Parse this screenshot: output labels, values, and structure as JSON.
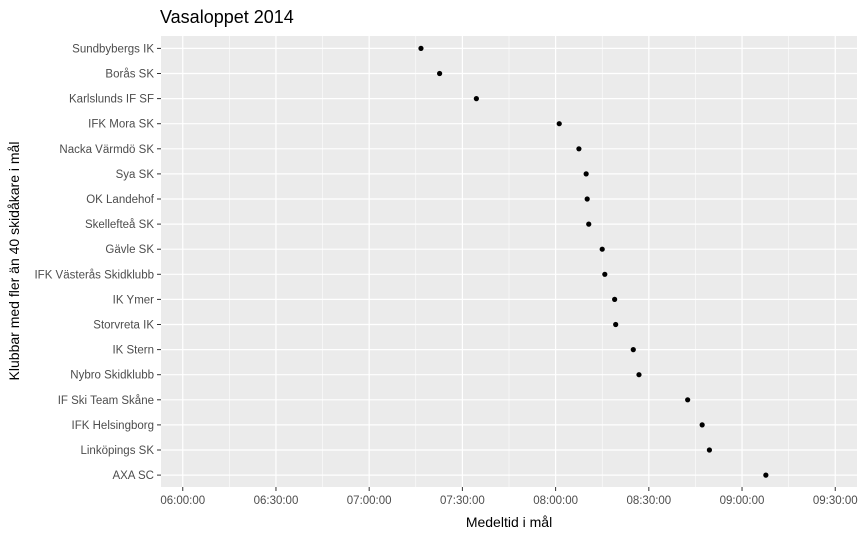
{
  "chart_data": {
    "type": "scatter",
    "title": "Vasaloppet 2014",
    "xlabel": "Medeltid i mål",
    "ylabel": "Klubbar med fler än 40 skidåkare i mål",
    "xlim": [
      "05:53:00",
      "09:37:00"
    ],
    "x_ticks": [
      "06:00:00",
      "06:30:00",
      "07:00:00",
      "07:30:00",
      "08:00:00",
      "08:30:00",
      "09:00:00",
      "09:30:00"
    ],
    "grid": true,
    "legend": "none",
    "colors": {
      "panel": "#ebebeb",
      "grid": "#ffffff",
      "point": "#000000",
      "tick_text": "#4d4d4d"
    },
    "points": [
      {
        "club": "Sundbybergs IK",
        "time": "07:16:40"
      },
      {
        "club": "Borås SK",
        "time": "07:22:40"
      },
      {
        "club": "Karlslunds IF SF",
        "time": "07:34:30"
      },
      {
        "club": "IFK Mora SK",
        "time": "08:01:10"
      },
      {
        "club": "Nacka Värmdö SK",
        "time": "08:07:30"
      },
      {
        "club": "Sya SK",
        "time": "08:09:50"
      },
      {
        "club": "OK Landehof",
        "time": "08:10:10"
      },
      {
        "club": "Skellefteå SK",
        "time": "08:10:40"
      },
      {
        "club": "Gävle SK",
        "time": "08:15:00"
      },
      {
        "club": "IFK Västerås Skidklubb",
        "time": "08:15:50"
      },
      {
        "club": "IK Ymer",
        "time": "08:19:00"
      },
      {
        "club": "Storvreta IK",
        "time": "08:19:20"
      },
      {
        "club": "IK Stern",
        "time": "08:25:00"
      },
      {
        "club": "Nybro Skidklubb",
        "time": "08:26:50"
      },
      {
        "club": "IF Ski Team Skåne",
        "time": "08:42:30"
      },
      {
        "club": "IFK Helsingborg",
        "time": "08:47:10"
      },
      {
        "club": "Linköpings SK",
        "time": "08:49:30"
      },
      {
        "club": "AXA SC",
        "time": "09:07:40"
      }
    ]
  }
}
